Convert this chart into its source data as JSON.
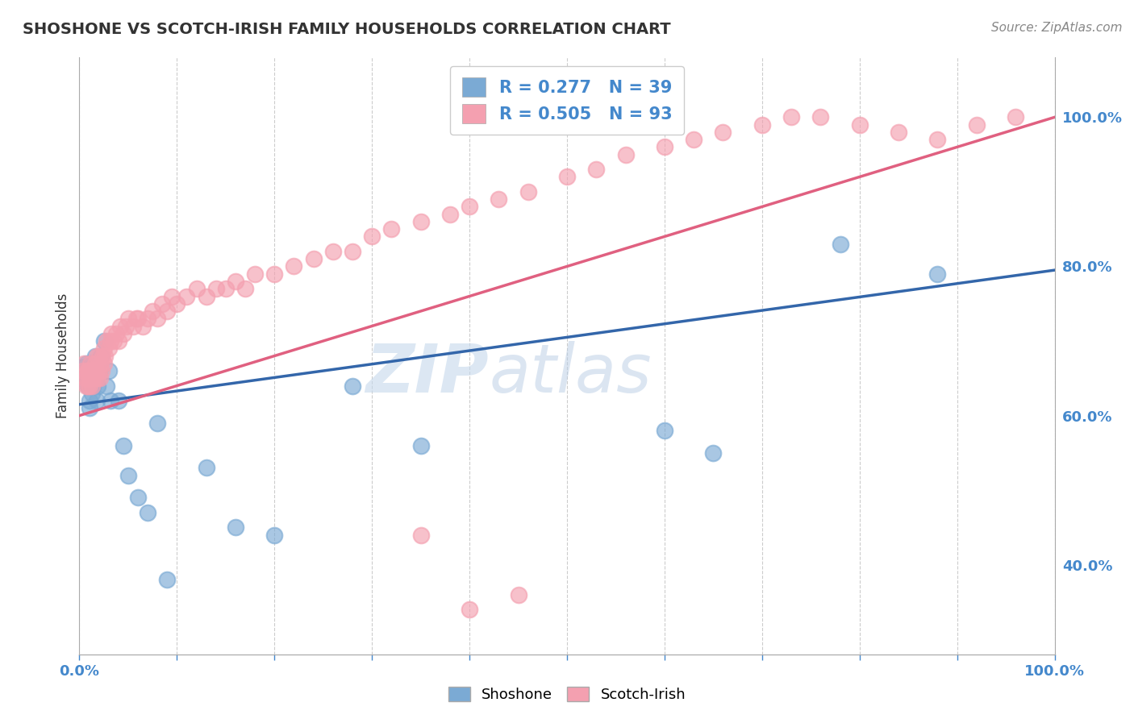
{
  "title": "SHOSHONE VS SCOTCH-IRISH FAMILY HOUSEHOLDS CORRELATION CHART",
  "source": "Source: ZipAtlas.com",
  "ylabel": "Family Households",
  "xlim": [
    0.0,
    1.0
  ],
  "ylim": [
    0.28,
    1.08
  ],
  "right_yticks": [
    0.4,
    0.6,
    0.8,
    1.0
  ],
  "right_yticklabels": [
    "40.0%",
    "60.0%",
    "80.0%",
    "100.0%"
  ],
  "shoshone_color": "#7BAAD4",
  "scotch_irish_color": "#F4A0B0",
  "shoshone_R": 0.277,
  "shoshone_N": 39,
  "scotch_irish_R": 0.505,
  "scotch_irish_N": 93,
  "watermark_zip": "ZIP",
  "watermark_atlas": "atlas",
  "background_color": "#ffffff",
  "grid_color": "#cccccc",
  "shoshone_line_color": "#3366AA",
  "scotch_irish_line_color": "#E06080",
  "sh_line_x0": 0.0,
  "sh_line_y0": 0.615,
  "sh_line_x1": 1.0,
  "sh_line_y1": 0.795,
  "si_line_x0": 0.0,
  "si_line_y0": 0.6,
  "si_line_x1": 1.0,
  "si_line_y1": 1.0,
  "shoshone_x": [
    0.005,
    0.007,
    0.008,
    0.009,
    0.01,
    0.01,
    0.011,
    0.012,
    0.012,
    0.013,
    0.014,
    0.015,
    0.016,
    0.016,
    0.017,
    0.018,
    0.019,
    0.02,
    0.022,
    0.025,
    0.028,
    0.03,
    0.032,
    0.04,
    0.045,
    0.05,
    0.06,
    0.07,
    0.08,
    0.09,
    0.13,
    0.16,
    0.2,
    0.28,
    0.35,
    0.6,
    0.65,
    0.78,
    0.88
  ],
  "shoshone_y": [
    0.665,
    0.67,
    0.65,
    0.64,
    0.62,
    0.61,
    0.67,
    0.64,
    0.66,
    0.63,
    0.64,
    0.67,
    0.65,
    0.68,
    0.66,
    0.62,
    0.64,
    0.66,
    0.68,
    0.7,
    0.64,
    0.66,
    0.62,
    0.62,
    0.56,
    0.52,
    0.49,
    0.47,
    0.59,
    0.38,
    0.53,
    0.45,
    0.44,
    0.64,
    0.56,
    0.58,
    0.55,
    0.83,
    0.79
  ],
  "scotch_irish_x": [
    0.004,
    0.005,
    0.006,
    0.007,
    0.008,
    0.008,
    0.009,
    0.009,
    0.01,
    0.01,
    0.01,
    0.01,
    0.011,
    0.011,
    0.012,
    0.012,
    0.013,
    0.014,
    0.014,
    0.015,
    0.016,
    0.016,
    0.017,
    0.018,
    0.019,
    0.02,
    0.02,
    0.021,
    0.022,
    0.023,
    0.024,
    0.025,
    0.025,
    0.026,
    0.028,
    0.03,
    0.032,
    0.033,
    0.035,
    0.038,
    0.04,
    0.042,
    0.045,
    0.048,
    0.05,
    0.055,
    0.058,
    0.06,
    0.065,
    0.07,
    0.075,
    0.08,
    0.085,
    0.09,
    0.095,
    0.1,
    0.11,
    0.12,
    0.13,
    0.14,
    0.15,
    0.16,
    0.17,
    0.18,
    0.2,
    0.22,
    0.24,
    0.26,
    0.28,
    0.3,
    0.32,
    0.35,
    0.38,
    0.4,
    0.43,
    0.46,
    0.5,
    0.53,
    0.56,
    0.6,
    0.63,
    0.66,
    0.7,
    0.73,
    0.76,
    0.8,
    0.84,
    0.88,
    0.92,
    0.96,
    0.35,
    0.4,
    0.45
  ],
  "scotch_irish_y": [
    0.66,
    0.67,
    0.65,
    0.64,
    0.65,
    0.66,
    0.64,
    0.66,
    0.65,
    0.66,
    0.64,
    0.66,
    0.65,
    0.67,
    0.65,
    0.66,
    0.64,
    0.66,
    0.65,
    0.66,
    0.65,
    0.67,
    0.66,
    0.68,
    0.65,
    0.66,
    0.68,
    0.65,
    0.67,
    0.66,
    0.68,
    0.67,
    0.69,
    0.68,
    0.7,
    0.69,
    0.7,
    0.71,
    0.7,
    0.71,
    0.7,
    0.72,
    0.71,
    0.72,
    0.73,
    0.72,
    0.73,
    0.73,
    0.72,
    0.73,
    0.74,
    0.73,
    0.75,
    0.74,
    0.76,
    0.75,
    0.76,
    0.77,
    0.76,
    0.77,
    0.77,
    0.78,
    0.77,
    0.79,
    0.79,
    0.8,
    0.81,
    0.82,
    0.82,
    0.84,
    0.85,
    0.86,
    0.87,
    0.88,
    0.89,
    0.9,
    0.92,
    0.93,
    0.95,
    0.96,
    0.97,
    0.98,
    0.99,
    1.0,
    1.0,
    0.99,
    0.98,
    0.97,
    0.99,
    1.0,
    0.44,
    0.34,
    0.36
  ],
  "legend_R_color": "#4488CC",
  "legend_N_color": "#4488CC"
}
